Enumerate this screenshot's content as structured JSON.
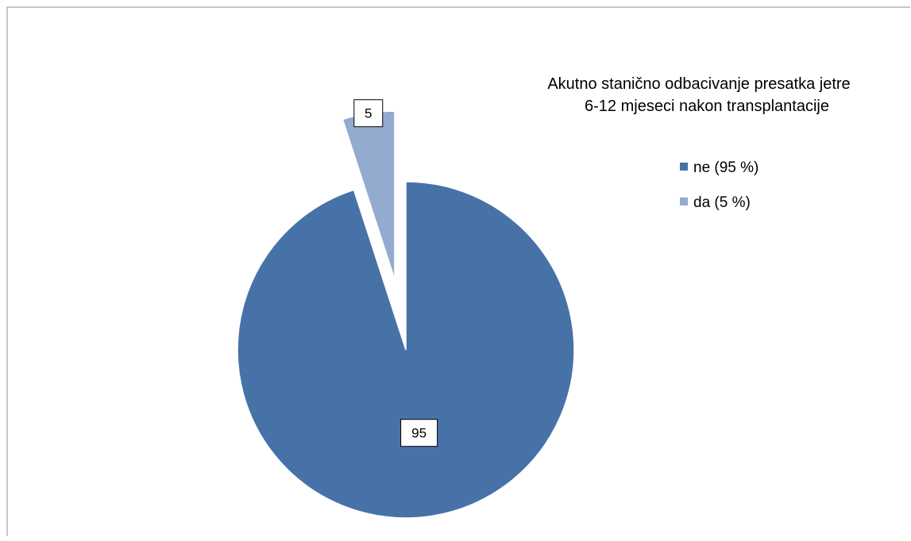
{
  "chart_data": {
    "type": "pie",
    "title_lines": [
      "Akutno stanično odbacivanje presatka jetre",
      "6-12 mjeseci nakon transplantacije"
    ],
    "categories": [
      "ne (95 %)",
      "da (5 %)"
    ],
    "values": [
      95,
      5
    ],
    "data_labels": [
      "95",
      "5"
    ],
    "colors": [
      "#4672A8",
      "#94AACE"
    ],
    "exploded": [
      false,
      true
    ],
    "legend_position": "right"
  }
}
